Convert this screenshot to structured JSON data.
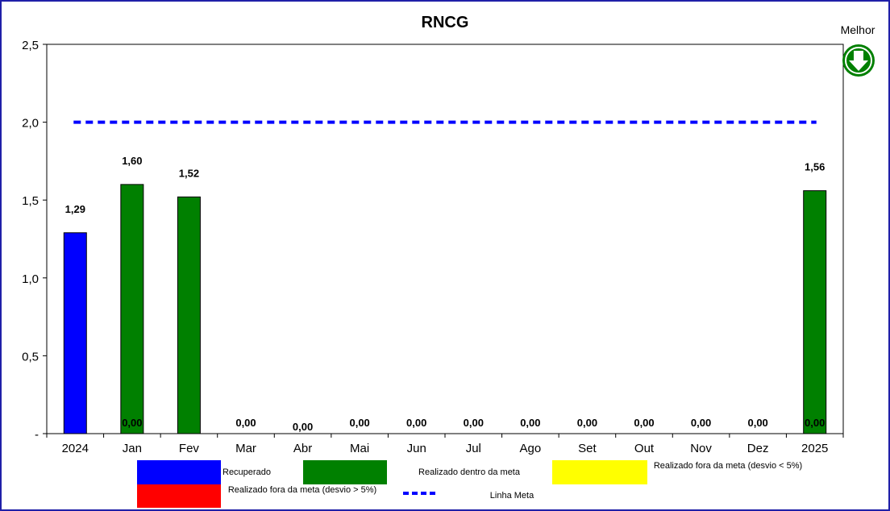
{
  "chart_data": {
    "type": "bar",
    "title": "RNCG",
    "categories": [
      "2024",
      "Jan",
      "Fev",
      "Mar",
      "Abr",
      "Mai",
      "Jun",
      "Jul",
      "Ago",
      "Set",
      "Out",
      "Nov",
      "Dez",
      "2025"
    ],
    "values": [
      1.29,
      1.6,
      1.52,
      0.0,
      0.0,
      0.0,
      0.0,
      0.0,
      0.0,
      0.0,
      0.0,
      0.0,
      0.0,
      1.56
    ],
    "data_labels": [
      "1,29",
      "1,60",
      "1,52",
      "0,00",
      "0,00",
      "0,00",
      "0,00",
      "0,00",
      "0,00",
      "0,00",
      "0,00",
      "0,00",
      "0,00",
      "1,56"
    ],
    "extra_labels": [
      {
        "category": "Jan",
        "text": "0,00"
      },
      {
        "category": "2025",
        "text": "0,00"
      }
    ],
    "bar_colors": [
      "#0000ff",
      "#008000",
      "#008000",
      "#008000",
      "#008000",
      "#008000",
      "#008000",
      "#008000",
      "#008000",
      "#008000",
      "#008000",
      "#008000",
      "#008000",
      "#008000"
    ],
    "meta_value": 2.0,
    "ylim": [
      0,
      2.5
    ],
    "yticks": [
      0,
      0.5,
      1.0,
      1.5,
      2.0,
      2.5
    ],
    "ytick_labels": [
      "-",
      "0,5",
      "1,0",
      "1,5",
      "2,0",
      "2,5"
    ],
    "grid": false,
    "xlabel": "",
    "ylabel": ""
  },
  "legend": {
    "recuperado": {
      "label": "Recuperado",
      "color": "#0000ff"
    },
    "dentro": {
      "label": "Realizado dentro da meta",
      "color": "#008000"
    },
    "fora_menor": {
      "label": "Realizado fora da meta (desvio < 5%)",
      "color": "#ffff00"
    },
    "fora_maior": {
      "label": "Realizado fora da meta (desvio > 5%)",
      "color": "#ff0000"
    },
    "meta": {
      "label": "Linha Meta",
      "color": "#0000ff"
    }
  },
  "indicator": {
    "label": "Melhor",
    "icon": "down-arrow-icon",
    "color": "#008000"
  }
}
